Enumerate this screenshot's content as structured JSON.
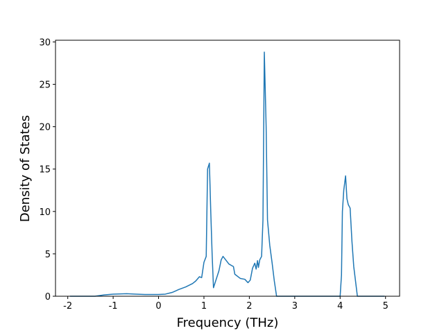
{
  "chart_data": {
    "type": "line",
    "xlabel": "Frequency (THz)",
    "ylabel": "Density of States",
    "xlim": [
      -2.27,
      5.31
    ],
    "ylim": [
      0,
      30.2
    ],
    "xticks": [
      -2,
      -1,
      0,
      1,
      2,
      3,
      4,
      5
    ],
    "yticks": [
      0,
      5,
      10,
      15,
      20,
      25,
      30
    ],
    "series": [
      {
        "color": "#1f77b4",
        "x": [
          -1.95,
          -1.4,
          -1.2,
          -1.0,
          -0.7,
          -0.5,
          -0.3,
          0,
          0.15,
          0.3,
          0.45,
          0.6,
          0.75,
          0.82,
          0.9,
          0.95,
          1.0,
          1.05,
          1.08,
          1.12,
          1.15,
          1.18,
          1.21,
          1.33,
          1.38,
          1.42,
          1.55,
          1.65,
          1.68,
          1.8,
          1.9,
          1.97,
          2.02,
          2.07,
          2.12,
          2.15,
          2.18,
          2.2,
          2.23,
          2.27,
          2.3,
          2.33,
          2.37,
          2.4,
          2.45,
          2.5,
          2.55,
          2.6,
          2.63,
          3.0,
          3.5,
          4.0,
          4.03,
          4.05,
          4.08,
          4.12,
          4.15,
          4.18,
          4.22,
          4.26,
          4.3,
          4.38,
          4.43,
          4.7,
          4.98
        ],
        "values": [
          0,
          0,
          0.15,
          0.25,
          0.3,
          0.25,
          0.2,
          0.2,
          0.25,
          0.45,
          0.8,
          1.1,
          1.5,
          1.8,
          2.3,
          2.2,
          4.0,
          4.7,
          15.0,
          15.7,
          10.0,
          5.0,
          1.0,
          3.0,
          4.3,
          4.7,
          3.8,
          3.5,
          2.6,
          2.1,
          2.0,
          1.6,
          1.9,
          3.3,
          3.9,
          3.2,
          4.2,
          3.4,
          4.3,
          4.7,
          9.0,
          28.8,
          20.0,
          9.0,
          6.0,
          4.0,
          1.8,
          0,
          0,
          0,
          0,
          0,
          2.5,
          10.0,
          12.5,
          14.2,
          11.5,
          10.8,
          10.4,
          6.5,
          3.5,
          0,
          0,
          0,
          0
        ]
      }
    ]
  }
}
